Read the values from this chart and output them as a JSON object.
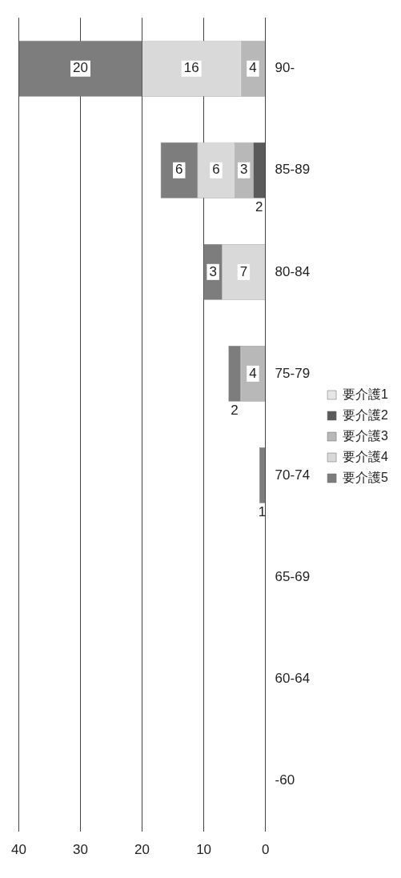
{
  "chart_data": {
    "type": "bar",
    "stacked": true,
    "orientation": "horizontal",
    "categories": [
      "90-",
      "85-89",
      "80-84",
      "75-79",
      "70-74",
      "65-69",
      "60-64",
      "-60"
    ],
    "series": [
      {
        "name": "要介護1",
        "color": "#e6e6e6",
        "values": [
          null,
          null,
          null,
          null,
          null,
          null,
          null,
          null
        ]
      },
      {
        "name": "要介護2",
        "color": "#5a5a5a",
        "values": [
          null,
          2,
          null,
          null,
          null,
          null,
          null,
          null
        ]
      },
      {
        "name": "要介護3",
        "color": "#b8b8b8",
        "values": [
          4,
          3,
          null,
          4,
          null,
          null,
          null,
          null
        ]
      },
      {
        "name": "要介護4",
        "color": "#d9d9d9",
        "values": [
          16,
          6,
          7,
          null,
          null,
          null,
          null,
          null
        ]
      },
      {
        "name": "要介護5",
        "color": "#7d7d7d",
        "values": [
          20,
          6,
          3,
          2,
          1,
          null,
          null,
          null
        ]
      }
    ],
    "xlim": [
      40,
      0
    ],
    "xticks": [
      40,
      30,
      20,
      10,
      0
    ],
    "grid": "x",
    "legend": "right",
    "data_labels": true
  }
}
